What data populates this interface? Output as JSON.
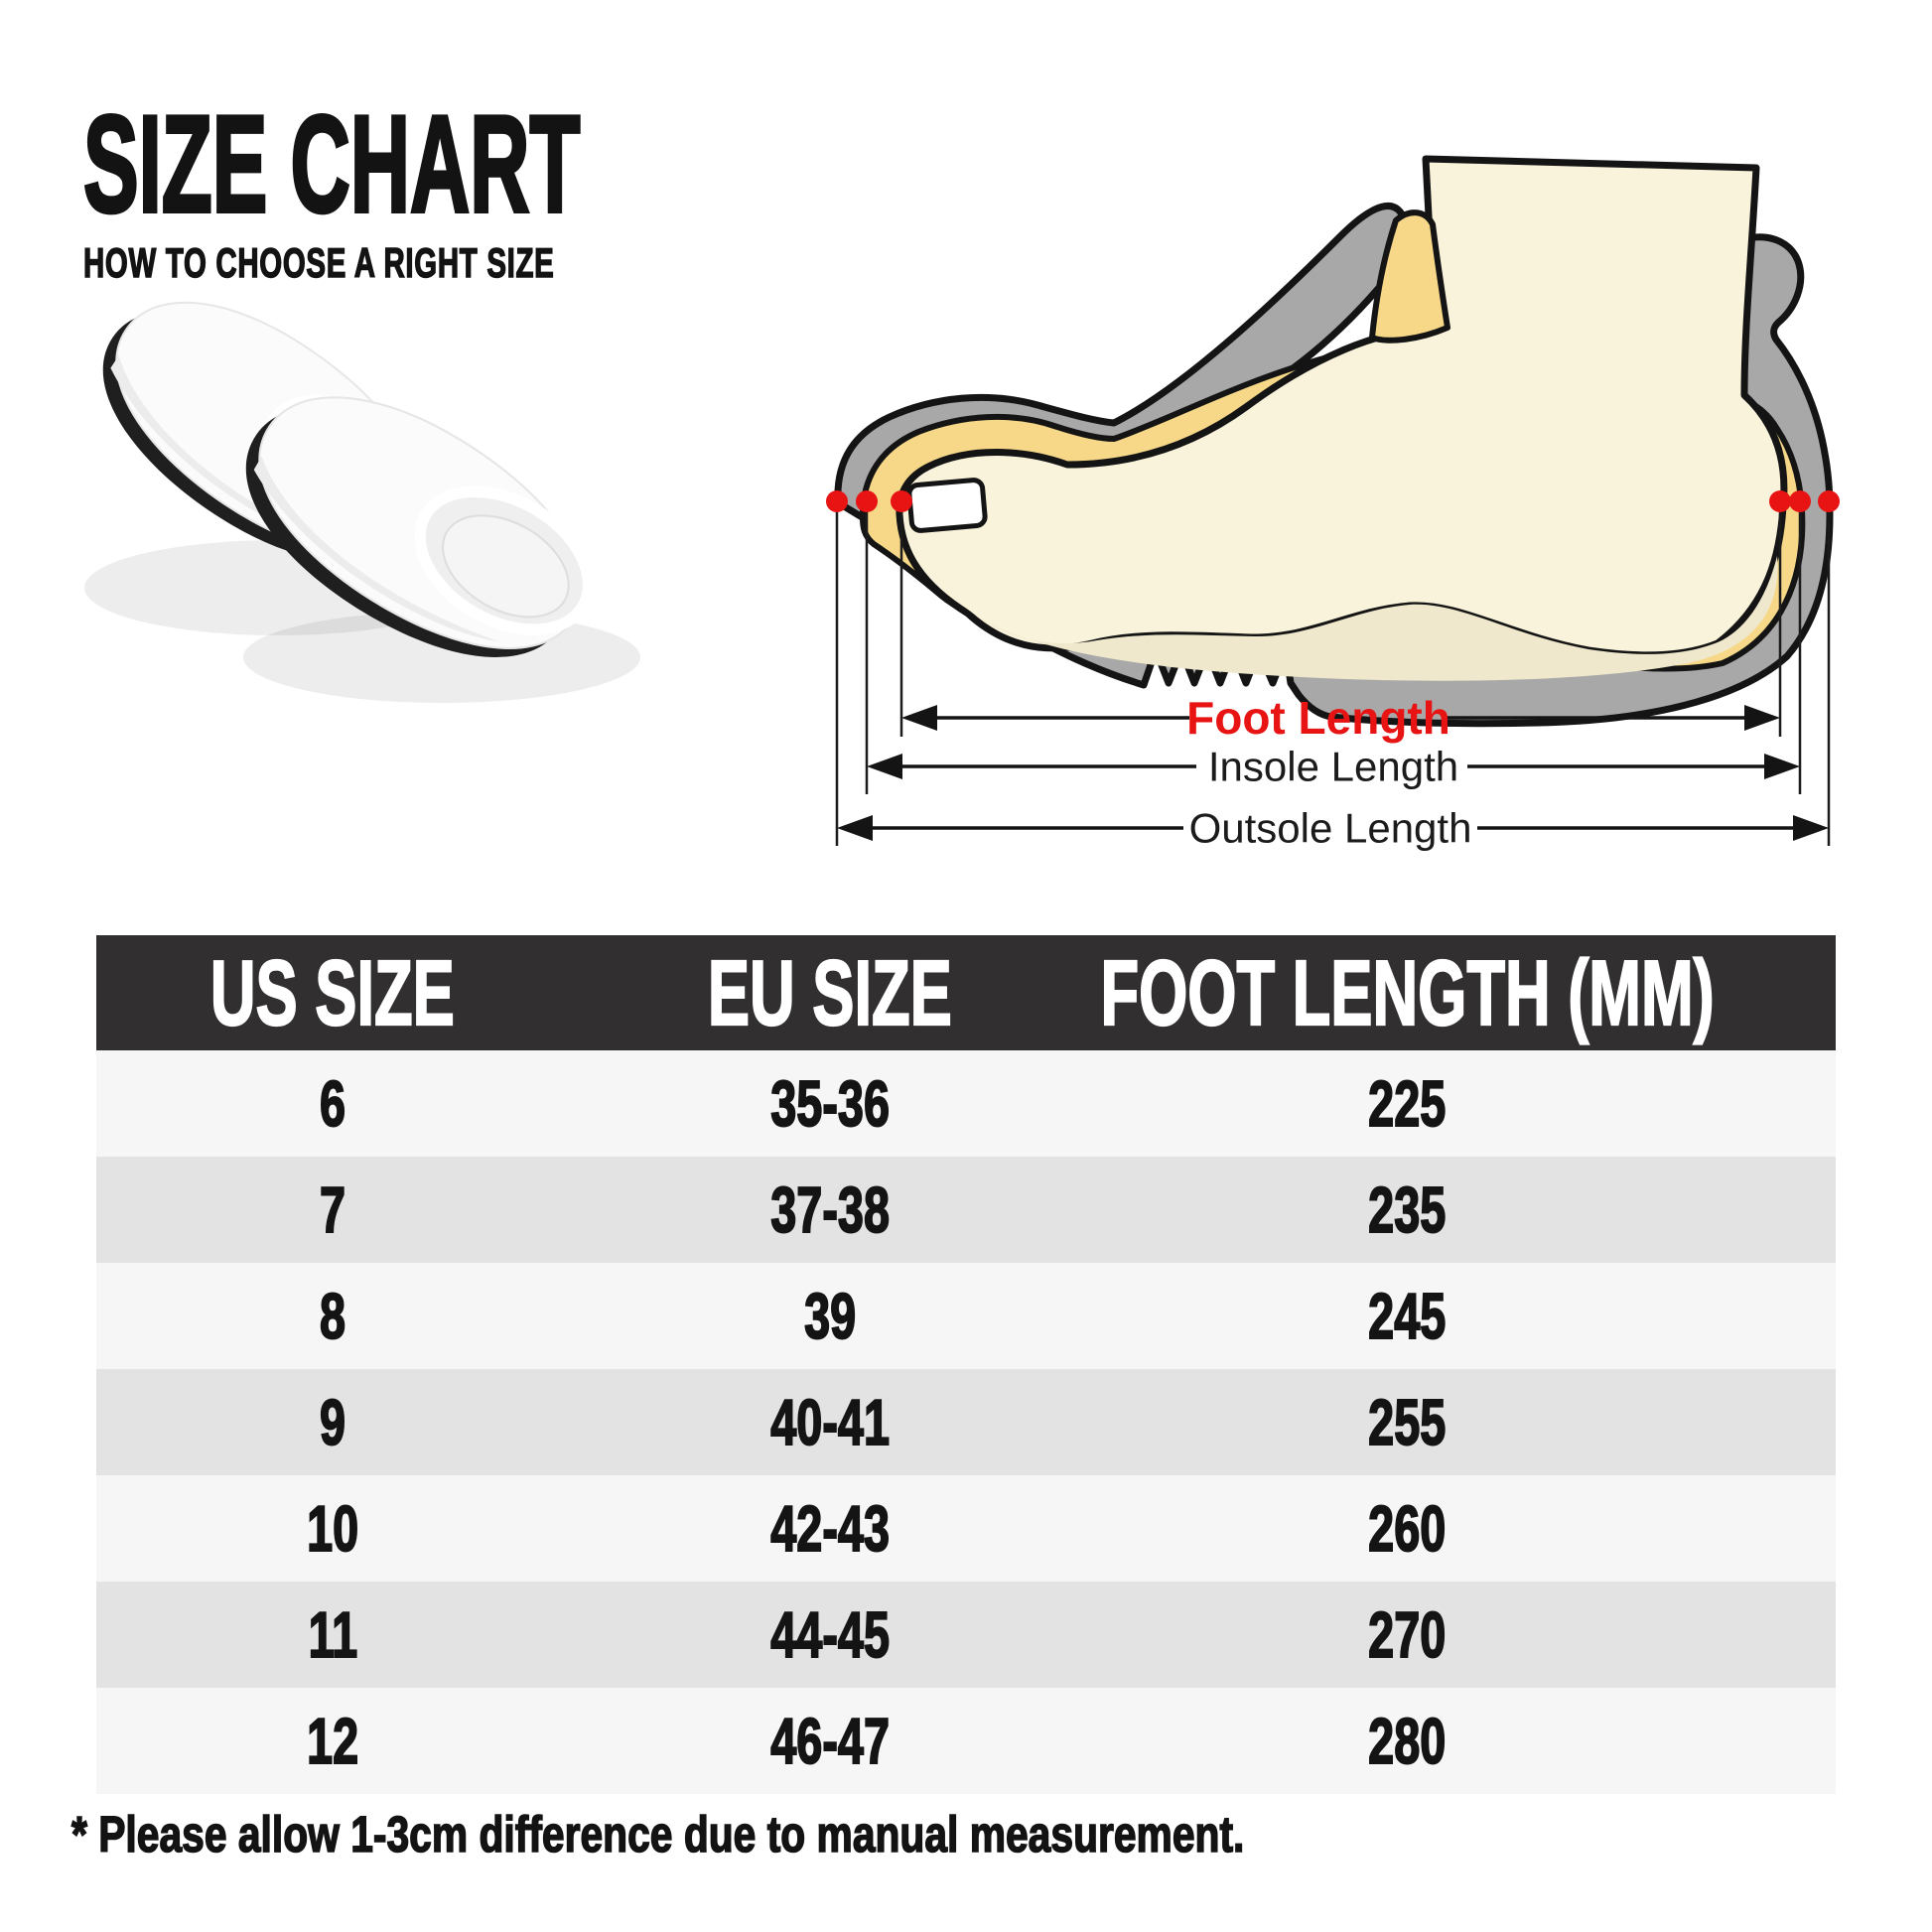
{
  "title": {
    "main": "SIZE CHART",
    "subtitle": "HOW TO CHOOSE A RIGHT SIZE"
  },
  "diagram": {
    "labels": {
      "foot_length": "Foot Length",
      "insole_length": "Insole Length",
      "outsole_length": "Outsole Length"
    },
    "marker_color": "#E81414",
    "sole_color": "#A8A8A8",
    "insole_color": "#F6D888",
    "foot_color": "#FAF3DC"
  },
  "photo": {
    "description": "white cotton slippers with black soles"
  },
  "table": {
    "headers": [
      "US SIZE",
      "EU SIZE",
      "FOOT LENGTH (MM)"
    ],
    "rows": [
      [
        "6",
        "35-36",
        "225"
      ],
      [
        "7",
        "37-38",
        "235"
      ],
      [
        "8",
        "39",
        "245"
      ],
      [
        "9",
        "40-41",
        "255"
      ],
      [
        "10",
        "42-43",
        "260"
      ],
      [
        "11",
        "44-45",
        "270"
      ],
      [
        "12",
        "46-47",
        "280"
      ]
    ],
    "header_bg": "#312F2F",
    "row_light": "#F7F6F6",
    "row_dark": "#E4E3E3"
  },
  "footnote": "* Please allow 1-3cm difference due to manual measurement."
}
